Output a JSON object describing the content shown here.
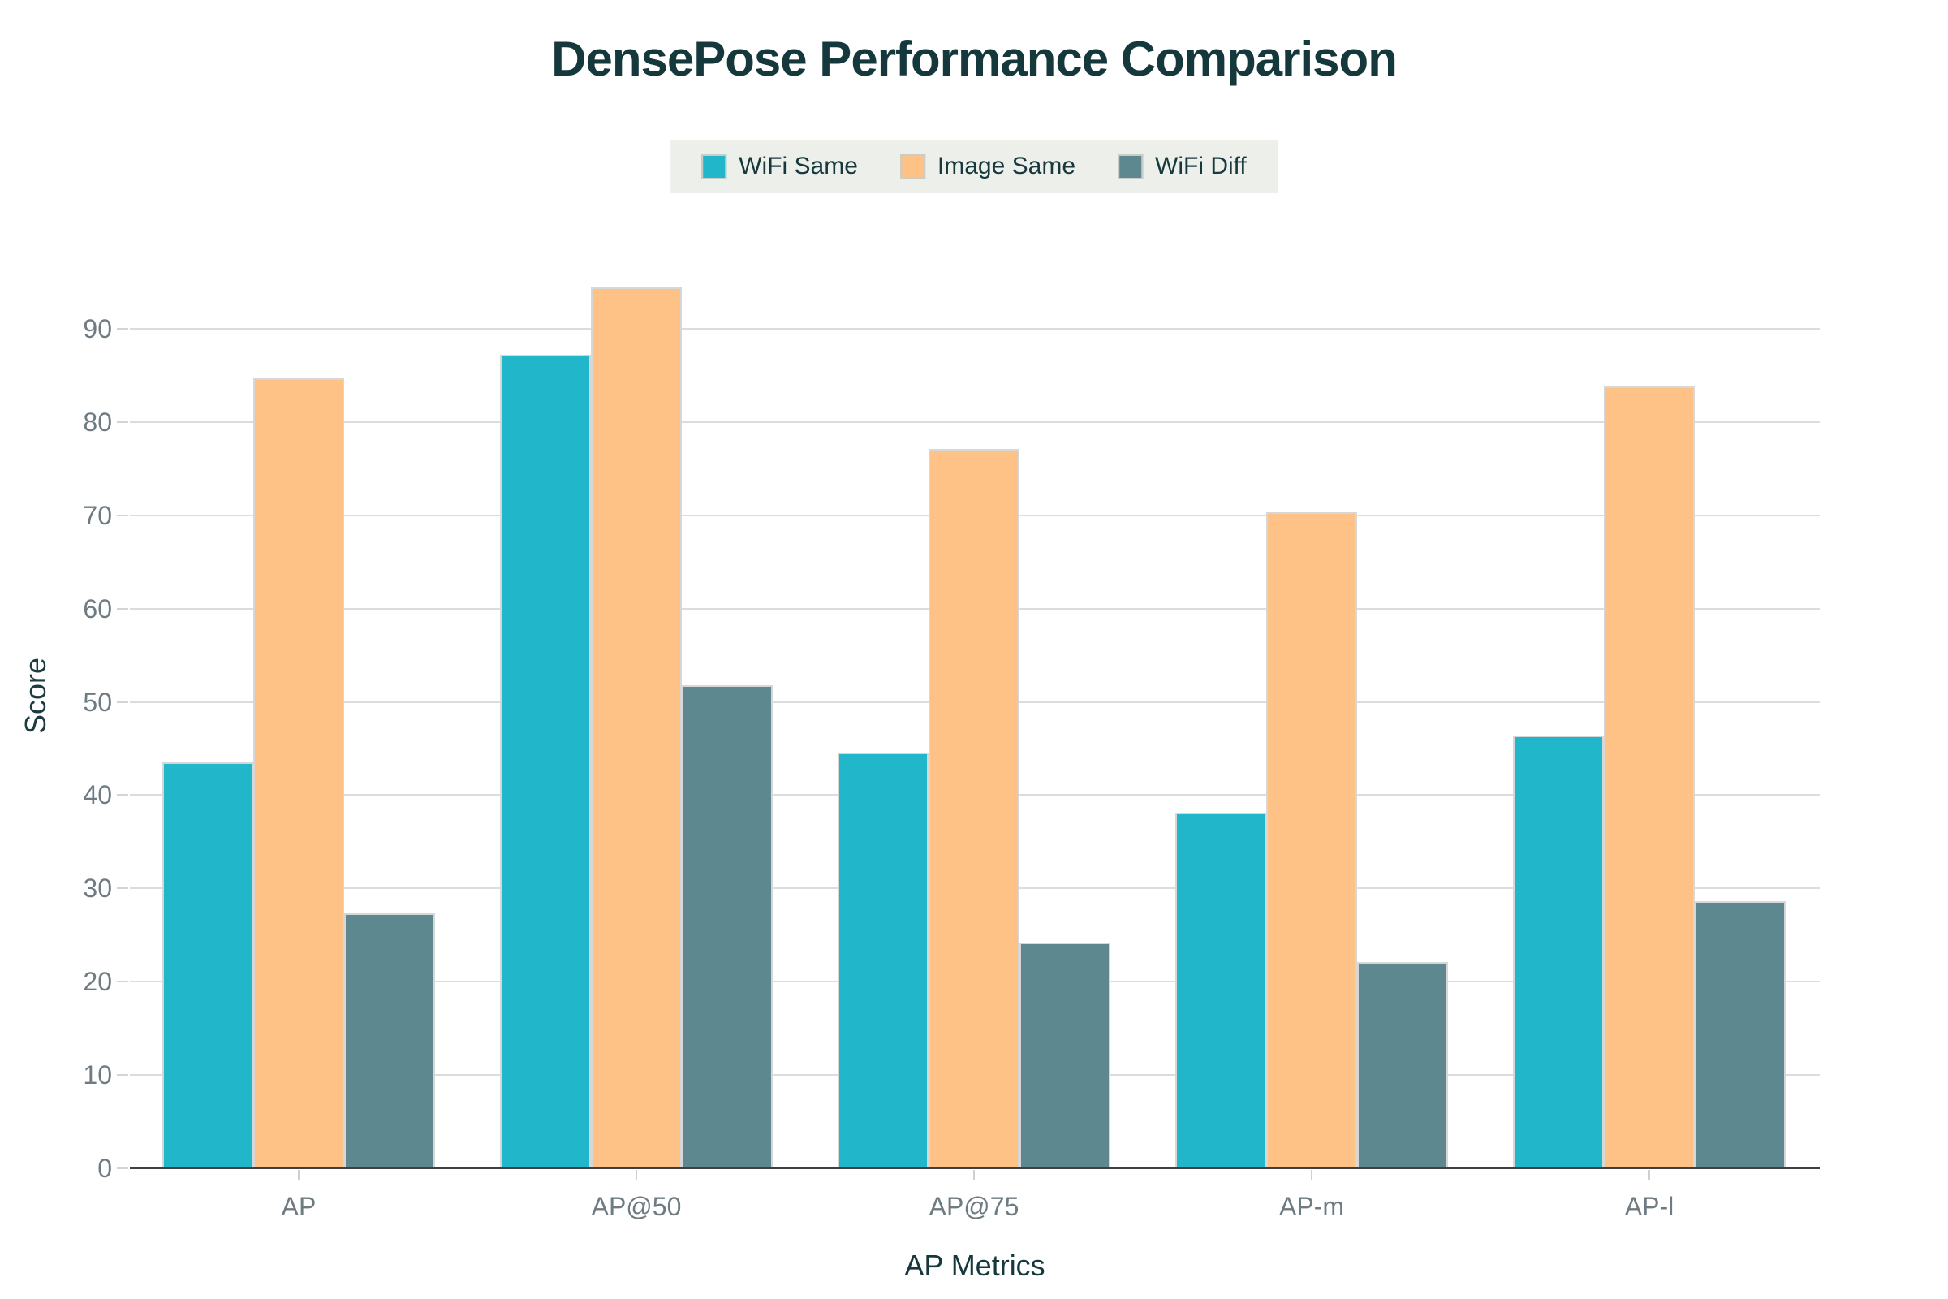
{
  "chart_data": {
    "type": "bar",
    "title": "DensePose Performance Comparison",
    "xlabel": "AP Metrics",
    "ylabel": "Score",
    "categories": [
      "AP",
      "AP@50",
      "AP@75",
      "AP-m",
      "AP-l"
    ],
    "series": [
      {
        "name": "WiFi Same",
        "color": "#21b6c9",
        "values": [
          43.5,
          87.2,
          44.6,
          38.1,
          46.4
        ]
      },
      {
        "name": "Image Same",
        "color": "#fec287",
        "values": [
          84.7,
          94.4,
          77.1,
          70.3,
          83.8
        ]
      },
      {
        "name": "WiFi Diff",
        "color": "#5d8890",
        "values": [
          27.3,
          51.8,
          24.2,
          22.1,
          28.6
        ]
      }
    ],
    "yticks": [
      0,
      10,
      20,
      30,
      40,
      50,
      60,
      70,
      80,
      90
    ],
    "ylim": [
      0,
      95
    ],
    "grid": true,
    "legend_position": "top-center"
  },
  "style": {
    "title_color": "#15383c",
    "axis_title_color": "#1c3c41",
    "tick_label_color": "#6e7b82",
    "legend_background": "#edf0ea",
    "legend_text_color": "#17393d",
    "gridline_color": "#dcdcdc",
    "axis_line_color": "#3f3f3f",
    "bar_border_color": "#d7d7d7",
    "background": "#ffffff"
  }
}
